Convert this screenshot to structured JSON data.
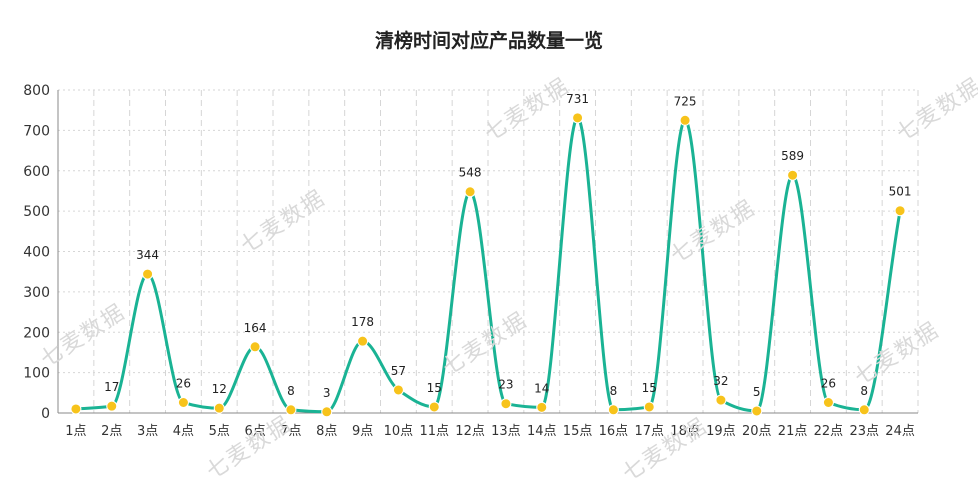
{
  "chart_data": {
    "type": "line",
    "title": "清榜时间对应产品数量一览",
    "xlabel": "",
    "ylabel": "",
    "categories": [
      "1点",
      "2点",
      "3点",
      "4点",
      "5点",
      "6点",
      "7点",
      "8点",
      "9点",
      "10点",
      "11点",
      "12点",
      "13点",
      "14点",
      "15点",
      "16点",
      "17点",
      "18点",
      "19点",
      "20点",
      "21点",
      "22点",
      "23点",
      "24点"
    ],
    "series": [
      {
        "values": [
          10,
          17,
          344,
          26,
          12,
          164,
          8,
          3,
          178,
          57,
          15,
          548,
          23,
          14,
          731,
          8,
          15,
          725,
          32,
          5,
          589,
          26,
          8,
          501
        ],
        "data_labels": [
          "",
          "17",
          "344",
          "26",
          "12",
          "164",
          "8",
          "3",
          "178",
          "57",
          "15",
          "548",
          "23",
          "14",
          "731",
          "8",
          "15",
          "725",
          "32",
          "5",
          "589",
          "26",
          "8",
          "501"
        ]
      }
    ],
    "ylim": [
      0,
      800
    ],
    "yticks": [
      0,
      100,
      200,
      300,
      400,
      500,
      600,
      700,
      800
    ],
    "smooth": true,
    "grid": {
      "horizontal": "dotted",
      "vertical": "dashed"
    },
    "colors": {
      "line": "#1ab394",
      "marker": "#f7c31b",
      "grid": "#d6d6d6",
      "axis": "#888888",
      "text": "#333333"
    }
  },
  "watermark_text": "七麦数据"
}
